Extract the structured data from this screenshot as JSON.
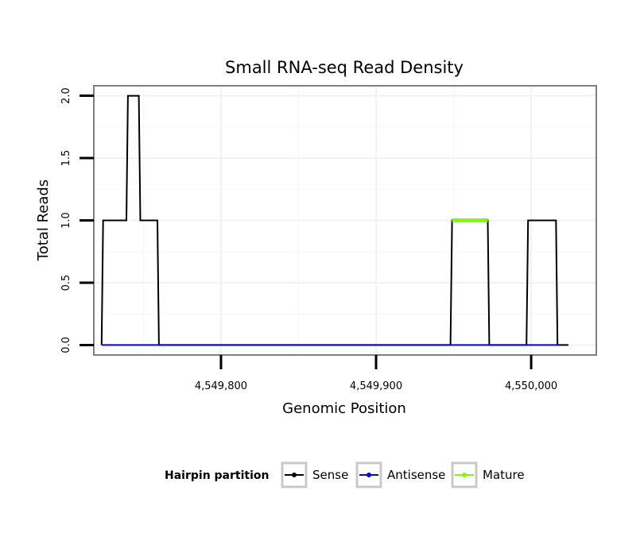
{
  "chart_data": {
    "type": "line",
    "title": "Small RNA-seq Read Density",
    "xlabel": "Genomic Position",
    "ylabel": "Total Reads",
    "xlim": [
      4549718,
      4550042
    ],
    "ylim": [
      -0.08,
      2.08
    ],
    "x_ticks": [
      4549800,
      4549900,
      4550000
    ],
    "x_tick_labels": [
      "4,549,800",
      "4,549,900",
      "4,550,000"
    ],
    "y_ticks": [
      0,
      0.5,
      1,
      1.5,
      2
    ],
    "y_tick_labels": [
      "0.0",
      "0.5",
      "1.0",
      "1.5",
      "2.0"
    ],
    "grid": true,
    "legend": {
      "title": "Hairpin partition",
      "position": "bottom",
      "entries": [
        "Sense",
        "Antisense",
        "Mature"
      ]
    },
    "series": [
      {
        "name": "Sense",
        "color": "#000000",
        "points": [
          [
            4549723,
            0
          ],
          [
            4549724,
            1
          ],
          [
            4549739,
            1
          ],
          [
            4549740,
            2
          ],
          [
            4549747,
            2
          ],
          [
            4549748,
            1
          ],
          [
            4549759,
            1
          ],
          [
            4549760,
            0
          ],
          [
            4549948,
            0
          ],
          [
            4549949,
            1
          ],
          [
            4549972,
            1
          ],
          [
            4549973,
            0
          ],
          [
            4549997,
            0
          ],
          [
            4549998,
            1
          ],
          [
            4550016,
            1
          ],
          [
            4550017,
            0
          ],
          [
            4550024,
            0
          ]
        ]
      },
      {
        "name": "Antisense",
        "color": "#0000ff",
        "points": [
          [
            4549723,
            0
          ],
          [
            4549760,
            0
          ],
          [
            4549948,
            0
          ],
          [
            4549973,
            0
          ],
          [
            4549998,
            0
          ],
          [
            4550017,
            0
          ]
        ]
      },
      {
        "name": "Mature",
        "color": "#7fff00",
        "points": [
          [
            4549949,
            1
          ],
          [
            4549972,
            1
          ]
        ]
      }
    ]
  }
}
